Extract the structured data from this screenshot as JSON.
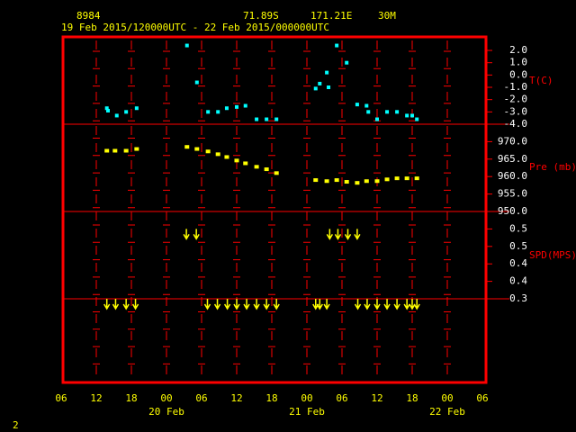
{
  "header": {
    "station": "8984",
    "lat": "71.89S",
    "lon": "171.21E",
    "elev": "30M",
    "period": "19 Feb 2015/120000UTC - 22 Feb 2015/000000UTC",
    "page": "2"
  },
  "x_axis": {
    "xlim": [
      6,
      78
    ],
    "xticks": [
      {
        "value": 6,
        "label": "06"
      },
      {
        "value": 12,
        "label": "12"
      },
      {
        "value": 18,
        "label": "18"
      },
      {
        "value": 24,
        "label": "00"
      },
      {
        "value": 30,
        "label": "06"
      },
      {
        "value": 36,
        "label": "12"
      },
      {
        "value": 42,
        "label": "18"
      },
      {
        "value": 48,
        "label": "00"
      },
      {
        "value": 54,
        "label": "06"
      },
      {
        "value": 60,
        "label": "12"
      },
      {
        "value": 66,
        "label": "18"
      },
      {
        "value": 72,
        "label": "00"
      },
      {
        "value": 78,
        "label": "06"
      }
    ],
    "date_labels": [
      {
        "value": 24,
        "label": "20 Feb"
      },
      {
        "value": 48,
        "label": "21 Feb"
      },
      {
        "value": 72,
        "label": "22 Feb"
      }
    ]
  },
  "chart_data": [
    {
      "type": "scatter",
      "ylabel": "T(C)",
      "color": "#00ffff",
      "x": [
        13.8,
        14.0,
        15.5,
        17.1,
        18.9,
        27.5,
        29.2,
        31.1,
        32.8,
        34.3,
        36.0,
        37.5,
        39.4,
        41.1,
        42.8,
        49.5,
        50.2,
        51.4,
        51.7,
        53.1,
        54.8,
        56.6,
        58.2,
        58.5,
        60.0,
        61.7,
        63.4,
        65.1,
        66.0,
        66.8
      ],
      "values": [
        -2.7,
        -2.9,
        -3.3,
        -3.0,
        -2.7,
        2.4,
        -0.6,
        -3.0,
        -3.0,
        -2.7,
        -2.6,
        -2.5,
        -3.6,
        -3.6,
        -3.6,
        -1.1,
        -0.7,
        0.2,
        -1.0,
        2.4,
        1.0,
        -2.4,
        -2.5,
        -3.0,
        -3.6,
        -3.0,
        -3.0,
        -3.3,
        -3.3,
        -3.6
      ],
      "ylim": [
        -4.0,
        3.1
      ],
      "yticks": [
        {
          "value": 2,
          "label": "2.0"
        },
        {
          "value": 1,
          "label": "1.0"
        },
        {
          "value": 0,
          "label": "0.0"
        },
        {
          "value": -1,
          "label": "-1.0"
        },
        {
          "value": -2,
          "label": "-2.0"
        },
        {
          "value": -3,
          "label": "-3.0"
        },
        {
          "value": -4,
          "label": "-4.0"
        }
      ]
    },
    {
      "type": "scatter",
      "ylabel": "Pre (mb)",
      "color": "#ffff00",
      "x": [
        13.8,
        15.2,
        17.1,
        18.9,
        27.5,
        29.2,
        31.1,
        32.8,
        34.3,
        36.0,
        37.5,
        39.4,
        41.1,
        42.8,
        49.5,
        51.4,
        53.1,
        54.8,
        56.6,
        58.2,
        60.0,
        61.7,
        63.4,
        65.1,
        66.8
      ],
      "values": [
        967.4,
        967.4,
        967.4,
        967.9,
        968.5,
        967.9,
        967.2,
        966.4,
        965.6,
        964.6,
        963.8,
        962.8,
        962.1,
        961.0,
        959.0,
        958.7,
        959.0,
        958.5,
        958.2,
        958.7,
        958.7,
        959.2,
        959.5,
        959.5,
        959.5
      ],
      "ylim": [
        950,
        975
      ],
      "yticks": [
        {
          "value": 970,
          "label": "970.0"
        },
        {
          "value": 965,
          "label": "965.0"
        },
        {
          "value": 960,
          "label": "960.0"
        },
        {
          "value": 955,
          "label": "955.0"
        },
        {
          "value": 950,
          "label": "950.0"
        }
      ]
    },
    {
      "type": "arrow",
      "ylabel": "SPD(MPS)",
      "color": "#ffff00",
      "x": [
        13.8,
        15.3,
        17.1,
        18.7,
        27.4,
        29.1,
        31.0,
        32.7,
        34.4,
        36.0,
        37.7,
        39.4,
        41.1,
        42.8,
        49.5,
        50.2,
        51.4,
        51.9,
        53.3,
        55.0,
        56.6,
        56.7,
        58.3,
        60.0,
        61.7,
        63.4,
        65.1,
        66.0,
        66.8
      ],
      "values": [
        0.3,
        0.3,
        0.3,
        0.3,
        0.5,
        0.5,
        0.3,
        0.3,
        0.3,
        0.3,
        0.3,
        0.3,
        0.3,
        0.3,
        0.3,
        0.3,
        0.3,
        0.5,
        0.5,
        0.5,
        0.5,
        0.3,
        0.3,
        0.3,
        0.3,
        0.3,
        0.3,
        0.3,
        0.3
      ],
      "ylim": [
        0.3,
        0.55
      ],
      "yticks": [
        {
          "value": 0.5,
          "label": "0.5"
        },
        {
          "value": 0.45,
          "label": "0.5"
        },
        {
          "value": 0.4,
          "label": "0.4"
        },
        {
          "value": 0.35,
          "label": "0.4"
        },
        {
          "value": 0.3,
          "label": "0.3"
        }
      ]
    }
  ]
}
